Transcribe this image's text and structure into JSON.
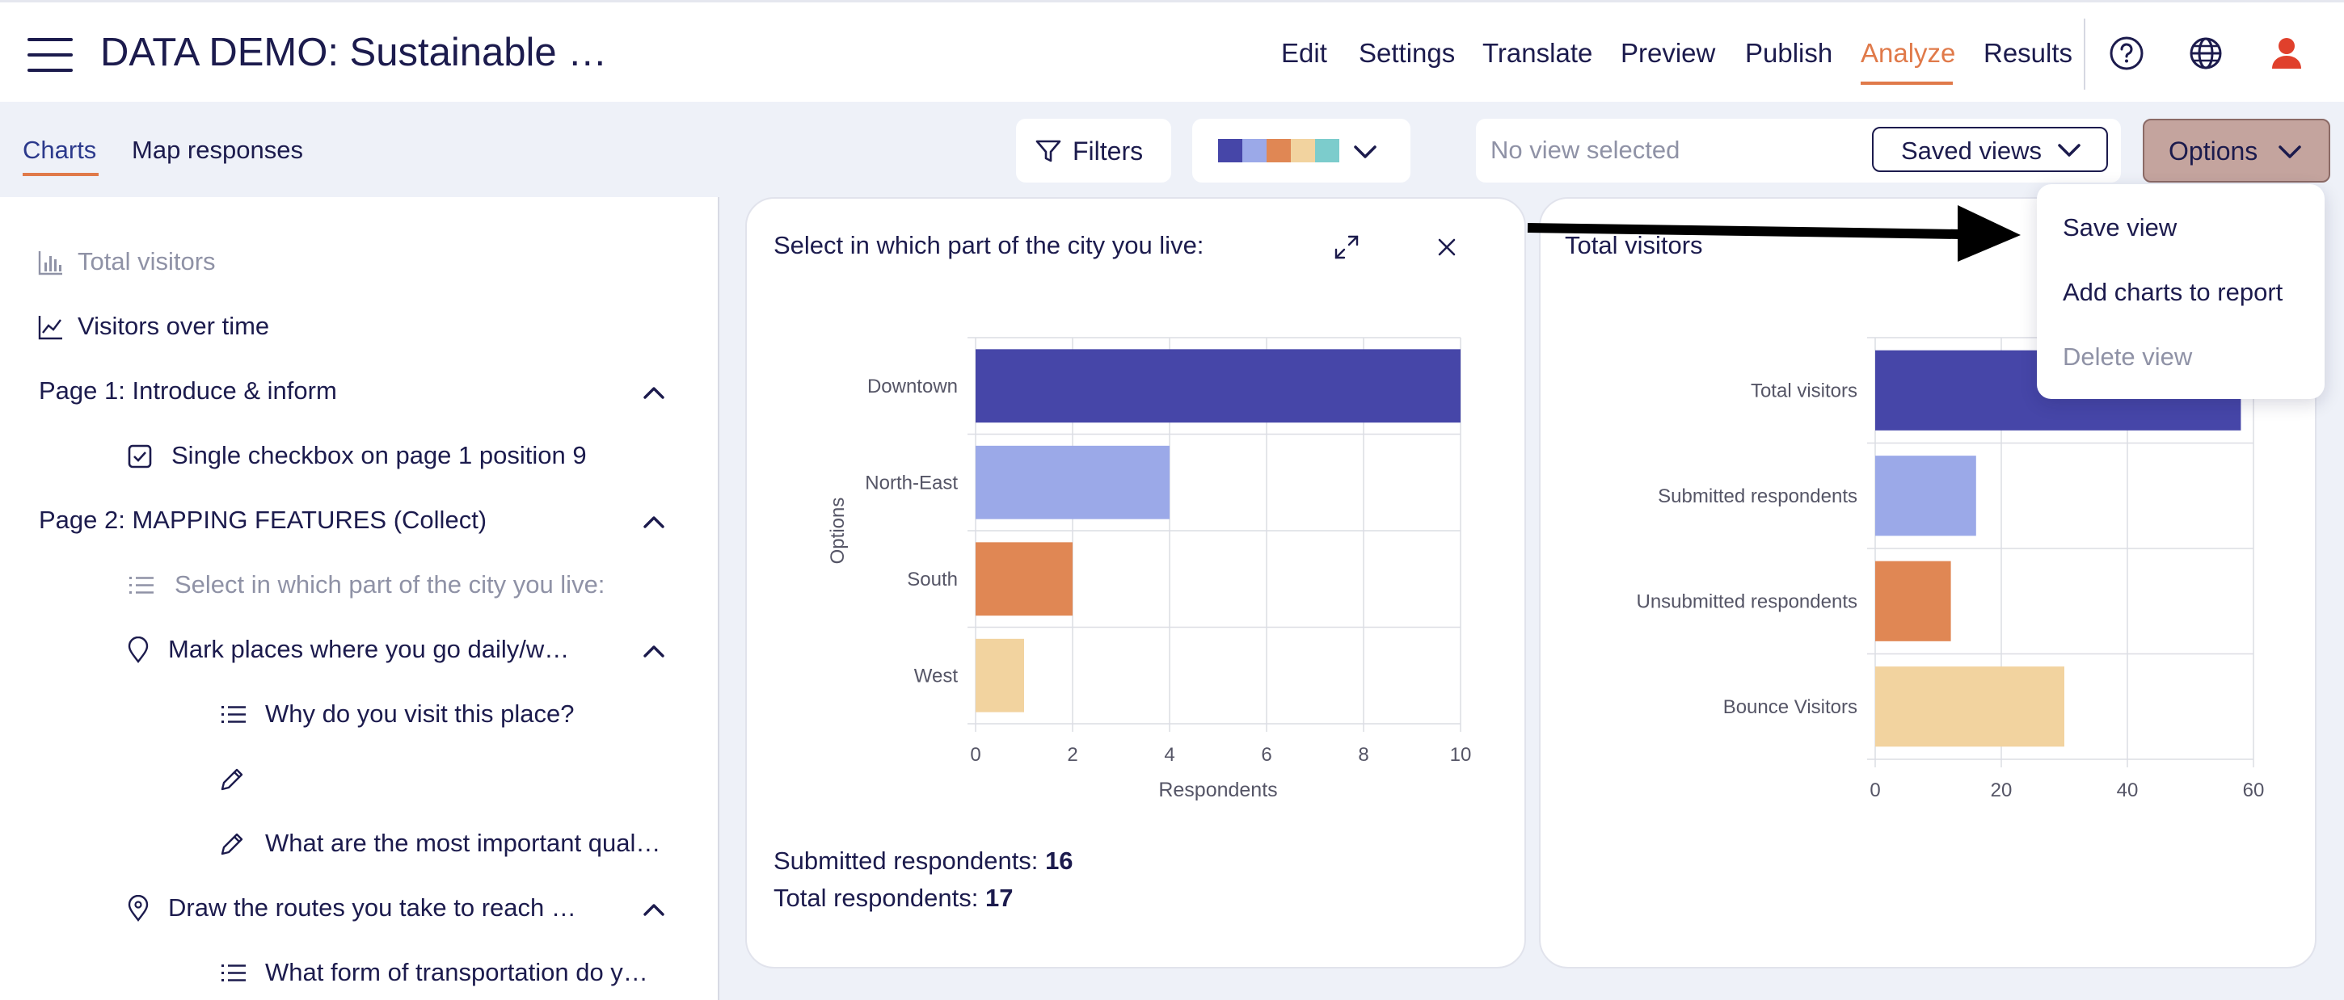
{
  "app": {
    "title": "DATA DEMO: Sustainable …"
  },
  "nav": {
    "items": [
      "Edit",
      "Settings",
      "Translate",
      "Preview",
      "Publish",
      "Analyze",
      "Results"
    ],
    "active": "Analyze"
  },
  "subtabs": [
    "Charts",
    "Map responses"
  ],
  "toolbar": {
    "filters_label": "Filters",
    "palette_colors": [
      "#4646a8",
      "#9ba9e8",
      "#e08754",
      "#f2d39f",
      "#7ccccc"
    ],
    "view_placeholder": "No view selected",
    "saved_views_label": "Saved views",
    "options_label": "Options"
  },
  "options_menu": {
    "items": [
      {
        "label": "Save view",
        "enabled": true
      },
      {
        "label": "Add charts to report",
        "enabled": true
      },
      {
        "label": "Delete view",
        "enabled": false
      }
    ]
  },
  "sidebar": {
    "items": [
      {
        "label": "Total visitors",
        "icon": "bar-chart-icon",
        "muted": true
      },
      {
        "label": "Visitors over time",
        "icon": "line-chart-icon"
      },
      {
        "label": "Page 1: Introduce & inform",
        "expandable": true
      },
      {
        "label": "Single checkbox on page 1 position 9",
        "icon": "checkbox-icon"
      },
      {
        "label": "Page 2: MAPPING FEATURES (Collect)",
        "expandable": true
      },
      {
        "label": "Select in which part of the city you live:",
        "icon": "list-icon",
        "muted": true
      },
      {
        "label": "Mark places where you go daily/w…",
        "icon": "map-pin-icon",
        "expandable": true
      },
      {
        "label": "Why do you visit this place?",
        "icon": "list-icon"
      },
      {
        "label": "",
        "icon": "pencil-icon"
      },
      {
        "label": "What are the most important qual…",
        "icon": "pencil-icon"
      },
      {
        "label": "Draw the routes you take to reach …",
        "icon": "route-pin-icon",
        "expandable": true
      },
      {
        "label": "What form of transportation do y…",
        "icon": "list-icon"
      }
    ]
  },
  "card1": {
    "title": "Select in which part of the city you live:",
    "stats": [
      {
        "label": "Submitted respondents:",
        "value": "16"
      },
      {
        "label": "Total respondents:",
        "value": "17"
      }
    ]
  },
  "card2": {
    "title": "Total visitors"
  },
  "chart_data": [
    {
      "type": "bar",
      "orientation": "horizontal",
      "title": "Select in which part of the city you live:",
      "categories": [
        "Downtown",
        "North-East",
        "South",
        "West"
      ],
      "values": [
        10,
        4,
        2,
        1
      ],
      "colors": [
        "#4646a8",
        "#9ba9e8",
        "#e08754",
        "#f2d39f"
      ],
      "xlabel": "Respondents",
      "ylabel": "Options",
      "xlim": [
        0,
        10
      ],
      "xticks": [
        0,
        2,
        4,
        6,
        8,
        10
      ],
      "grid": true
    },
    {
      "type": "bar",
      "orientation": "horizontal",
      "title": "Total visitors",
      "categories": [
        "Total visitors",
        "Submitted respondents",
        "Unsubmitted respondents",
        "Bounce Visitors"
      ],
      "values": [
        58,
        16,
        12,
        30
      ],
      "colors": [
        "#4646a8",
        "#9ba9e8",
        "#e08754",
        "#f2d39f"
      ],
      "xlabel": "",
      "ylabel": "",
      "xlim": [
        0,
        60
      ],
      "xticks": [
        0,
        20,
        40,
        60
      ],
      "grid": true
    }
  ]
}
